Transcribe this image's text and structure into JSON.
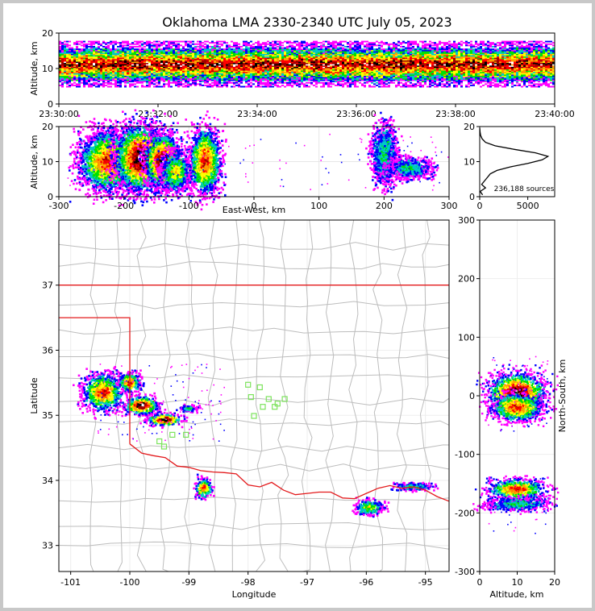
{
  "chart_data": {
    "type": "heatmap",
    "title": "Oklahoma LMA 2330-2340 UTC July 05, 2023",
    "panels": {
      "time_height": {
        "ylabel": "Altitude, km",
        "x_ticks": [
          "23:30:00",
          "23:32:00",
          "23:34:00",
          "23:36:00",
          "23:38:00",
          "23:40:00"
        ],
        "y_ticks": [
          "0",
          "10",
          "20"
        ],
        "xlim": [
          "23:30:00",
          "23:40:00"
        ],
        "ylim": [
          0,
          20
        ]
      },
      "ew_height": {
        "xlabel": "East-West, km",
        "ylabel": "Altitude, km",
        "x_ticks": [
          "-300",
          "-200",
          "-100",
          "0",
          "100",
          "200",
          "300"
        ],
        "y_ticks": [
          "0",
          "10",
          "20"
        ],
        "xlim": [
          -300,
          300
        ],
        "ylim": [
          0,
          20
        ],
        "clusters": [
          {
            "x": -225,
            "z": 10,
            "w": 45,
            "h": 9,
            "level": 3
          },
          {
            "x": -175,
            "z": 11,
            "w": 40,
            "h": 10,
            "level": 4
          },
          {
            "x": -140,
            "z": 10,
            "w": 30,
            "h": 8,
            "level": 4
          },
          {
            "x": -120,
            "z": 7,
            "w": 25,
            "h": 6,
            "level": 2
          },
          {
            "x": -75,
            "z": 10,
            "w": 25,
            "h": 10,
            "level": 3
          },
          {
            "x": 200,
            "z": 12,
            "w": 20,
            "h": 9,
            "level": 1
          },
          {
            "x": 240,
            "z": 8,
            "w": 35,
            "h": 3,
            "level": 1
          }
        ]
      },
      "histogram": {
        "x_ticks": [
          "0",
          "5000"
        ],
        "y_ticks": [
          "0",
          "10",
          "20"
        ],
        "xlim": [
          0,
          7800
        ],
        "ylim": [
          0,
          20
        ],
        "sources_label": "236,188 sources",
        "profile": [
          {
            "z": 0.5,
            "n": 300
          },
          {
            "z": 1.5,
            "n": 50
          },
          {
            "z": 2.5,
            "n": 600
          },
          {
            "z": 3.5,
            "n": 200
          },
          {
            "z": 4.5,
            "n": 500
          },
          {
            "z": 5.5,
            "n": 800
          },
          {
            "z": 6.5,
            "n": 1100
          },
          {
            "z": 7.5,
            "n": 1800
          },
          {
            "z": 8.5,
            "n": 3200
          },
          {
            "z": 9.5,
            "n": 5000
          },
          {
            "z": 10.5,
            "n": 6500
          },
          {
            "z": 11.5,
            "n": 7100
          },
          {
            "z": 12.5,
            "n": 5800
          },
          {
            "z": 13.5,
            "n": 3600
          },
          {
            "z": 14.5,
            "n": 1600
          },
          {
            "z": 15.5,
            "n": 600
          },
          {
            "z": 16.5,
            "n": 250
          },
          {
            "z": 17.5,
            "n": 90
          },
          {
            "z": 18.5,
            "n": 30
          },
          {
            "z": 19.5,
            "n": 5
          }
        ]
      },
      "plan": {
        "xlabel": "Longitude",
        "ylabel": "Latitude",
        "x_ticks": [
          "-101",
          "-100",
          "-99",
          "-98",
          "-97",
          "-96",
          "-95"
        ],
        "y_ticks": [
          "33",
          "34",
          "35",
          "36",
          "37"
        ],
        "xlim": [
          -101.2,
          -94.6
        ],
        "ylim": [
          32.6,
          38.0
        ],
        "clusters": [
          {
            "lon": -100.45,
            "lat": 35.35,
            "w": 0.35,
            "h": 0.3,
            "level": 3
          },
          {
            "lon": -100.0,
            "lat": 35.5,
            "w": 0.2,
            "h": 0.15,
            "level": 3
          },
          {
            "lon": -99.8,
            "lat": 35.15,
            "w": 0.3,
            "h": 0.15,
            "level": 4
          },
          {
            "lon": -99.4,
            "lat": 34.93,
            "w": 0.3,
            "h": 0.1,
            "level": 4
          },
          {
            "lon": -98.75,
            "lat": 33.88,
            "w": 0.15,
            "h": 0.15,
            "level": 3
          },
          {
            "lon": -95.95,
            "lat": 33.58,
            "w": 0.25,
            "h": 0.12,
            "level": 2
          },
          {
            "lon": -99.0,
            "lat": 35.1,
            "w": 0.15,
            "h": 0.05,
            "level": 1
          },
          {
            "lon": -95.2,
            "lat": 33.9,
            "w": 0.35,
            "h": 0.06,
            "level": 1
          }
        ],
        "stations": [
          {
            "lon": -98.0,
            "lat": 35.47
          },
          {
            "lon": -97.8,
            "lat": 35.43
          },
          {
            "lon": -97.95,
            "lat": 35.28
          },
          {
            "lon": -97.65,
            "lat": 35.25
          },
          {
            "lon": -97.38,
            "lat": 35.25
          },
          {
            "lon": -97.5,
            "lat": 35.18
          },
          {
            "lon": -97.75,
            "lat": 35.13
          },
          {
            "lon": -97.55,
            "lat": 35.13
          },
          {
            "lon": -97.9,
            "lat": 34.99
          },
          {
            "lon": -99.28,
            "lat": 34.7
          },
          {
            "lon": -99.5,
            "lat": 34.6
          },
          {
            "lon": -99.42,
            "lat": 34.52
          },
          {
            "lon": -99.05,
            "lat": 34.7
          }
        ]
      },
      "ns_height": {
        "xlabel": "Altitude, km",
        "ylabel": "North-South, km",
        "x_ticks": [
          "0",
          "10",
          "20"
        ],
        "y_ticks": [
          "300",
          "200",
          "100",
          "0",
          "-100",
          "-200",
          "-300"
        ],
        "xlim": [
          0,
          20
        ],
        "ylim": [
          -300,
          300
        ],
        "clusters": [
          {
            "y": 5,
            "z": 10,
            "h": 35,
            "w": 8,
            "level": 4
          },
          {
            "y": -20,
            "z": 10,
            "h": 25,
            "w": 7,
            "level": 3
          },
          {
            "y": -160,
            "z": 10,
            "h": 18,
            "w": 8,
            "level": 3
          },
          {
            "y": -185,
            "z": 10,
            "h": 12,
            "w": 9,
            "level": 1
          }
        ]
      }
    },
    "colors": {
      "border": "#e31a1c",
      "county": "#bdbdbd",
      "station": "#7ce35c",
      "density": [
        "#ff00ff",
        "#0000ff",
        "#00c8c8",
        "#00e000",
        "#ffff00",
        "#ffa000",
        "#ff0000",
        "#a00000",
        "#000000",
        "#ffffff"
      ]
    }
  }
}
